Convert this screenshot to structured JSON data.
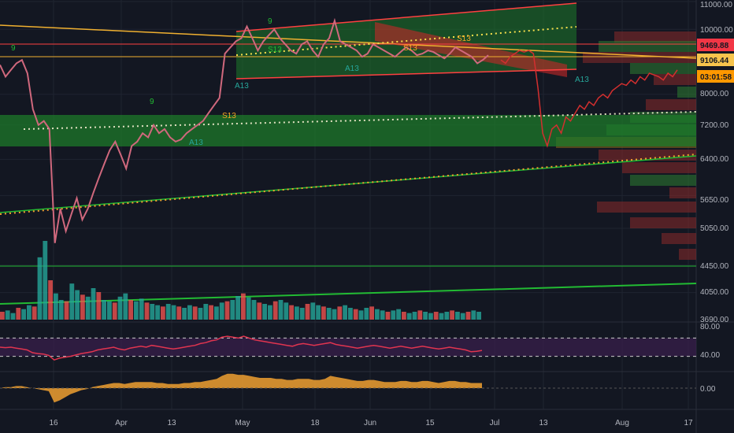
{
  "colors": {
    "background": "#131722",
    "grid": "#1f2430",
    "price_line": "#d0687d",
    "volume_up": "#26a69a",
    "volume_down": "#ef5350",
    "rsi_line": "#e0344f",
    "rsi_band": "#3a1f4d",
    "macd_fill": "#f0a030",
    "trendline_green": "#22bb33",
    "trendline_orange": "#f0b030",
    "channel_red": "#ff4040",
    "vp_green": "#2e7d32",
    "vp_red": "#8b2a2a",
    "badge_red": "#f23645",
    "badge_yellow": "#f7c44c",
    "badge_orange": "#ff9800"
  },
  "chart_data": [
    {
      "type": "line",
      "pane": "price",
      "title": "",
      "y_ticks": [
        "11000.00",
        "10000.00",
        "9469.88",
        "9106.44",
        "03:01:58",
        "8000.00",
        "7200.00",
        "6400.00",
        "5650.00",
        "5050.00",
        "4450.00",
        "4050.00",
        "3690.00"
      ],
      "ylim": [
        3690,
        11000
      ],
      "y_scale": "log",
      "badges": [
        {
          "value": "9469.88",
          "color": "#f23645"
        },
        {
          "value": "9106.44",
          "color": "#f7c44c"
        },
        {
          "value": "03:01:58",
          "color": "#ff9800"
        }
      ],
      "annotations": [
        "9",
        "S13",
        "A13",
        "S13",
        "A13",
        "9",
        "A13",
        "S13",
        "9",
        "S13",
        "A13"
      ],
      "series": [
        {
          "values": [
            8850,
            8500,
            8700,
            8900,
            9000,
            8600,
            7600,
            7200,
            7300,
            7100,
            4800,
            5400,
            5000,
            5300,
            5600,
            5200,
            5400,
            5700,
            6000,
            6300,
            6600,
            6800,
            6500,
            6200,
            6700,
            6800,
            7000,
            6900,
            7200,
            7000,
            7100,
            6900,
            6800,
            6850,
            7000,
            7100,
            7200,
            7300,
            7500,
            7700,
            7900,
            9200,
            9400,
            9600,
            9700,
            10100,
            9700,
            9300,
            9600,
            9800,
            10000,
            9700,
            9500,
            9300,
            9200,
            9500,
            9600,
            9300,
            9100,
            9500,
            9700,
            10300,
            9600,
            9500,
            9400,
            9300,
            9100,
            9200,
            9500,
            9400,
            9300,
            9200,
            9100,
            9250,
            9400,
            9300,
            9150,
            9200,
            9300,
            9250,
            9150,
            9050,
            9200,
            9400,
            9300,
            9200,
            9100,
            8900,
            9000,
            9150
          ]
        },
        {
          "values": [
            9000,
            8900,
            9100,
            9200,
            9300,
            9250,
            9300,
            9200,
            8150,
            7000,
            6700,
            7100,
            7200,
            7000,
            7400,
            7300,
            7500,
            7700,
            7600,
            7800,
            7700,
            7900,
            8000,
            7900,
            8100,
            8200,
            8300,
            8250,
            8400,
            8300,
            8500,
            8400,
            8600,
            8550,
            8500,
            8400,
            8600,
            8500,
            8700
          ]
        }
      ]
    },
    {
      "type": "bar",
      "pane": "volume",
      "values": [
        12,
        14,
        10,
        18,
        16,
        22,
        20,
        95,
        120,
        60,
        40,
        30,
        28,
        55,
        45,
        38,
        35,
        48,
        42,
        30,
        28,
        26,
        35,
        40,
        30,
        28,
        32,
        26,
        24,
        22,
        20,
        24,
        22,
        20,
        18,
        22,
        20,
        18,
        24,
        22,
        20,
        26,
        28,
        30,
        36,
        40,
        34,
        30,
        26,
        24,
        22,
        28,
        30,
        26,
        22,
        20,
        18,
        24,
        26,
        22,
        20,
        18,
        16,
        20,
        22,
        18,
        16,
        14,
        18,
        20,
        16,
        14,
        12,
        14,
        16,
        12,
        10,
        12,
        14,
        12,
        10,
        12,
        10,
        12,
        14,
        12,
        10,
        12,
        14,
        12
      ]
    },
    {
      "type": "line",
      "pane": "rsi",
      "y_ticks": [
        "80.00",
        "40.00"
      ],
      "ylim": [
        0,
        100
      ],
      "values": [
        50,
        49,
        50,
        48,
        46,
        44,
        38,
        36,
        35,
        32,
        22,
        26,
        28,
        30,
        33,
        36,
        38,
        40,
        44,
        46,
        48,
        50,
        46,
        44,
        48,
        50,
        52,
        50,
        54,
        52,
        50,
        48,
        46,
        48,
        50,
        52,
        54,
        58,
        60,
        64,
        66,
        72,
        74,
        72,
        70,
        74,
        70,
        66,
        64,
        62,
        60,
        58,
        56,
        54,
        52,
        56,
        58,
        56,
        54,
        56,
        58,
        60,
        56,
        54,
        52,
        50,
        48,
        50,
        52,
        54,
        52,
        50,
        48,
        50,
        52,
        50,
        48,
        50,
        52,
        50,
        48,
        46,
        48,
        50,
        48,
        46,
        44,
        40,
        41,
        43
      ]
    },
    {
      "type": "area",
      "pane": "macd",
      "y_ticks": [
        "0.00"
      ],
      "values": [
        0,
        1,
        1,
        2,
        2,
        1,
        0,
        -1,
        -2,
        -3,
        -14,
        -12,
        -9,
        -6,
        -4,
        -2,
        -1,
        1,
        2,
        3,
        4,
        5,
        5,
        4,
        5,
        6,
        6,
        6,
        6,
        5,
        5,
        4,
        4,
        4,
        5,
        5,
        6,
        6,
        7,
        8,
        9,
        12,
        14,
        14,
        13,
        13,
        12,
        11,
        10,
        10,
        10,
        9,
        9,
        8,
        8,
        9,
        9,
        9,
        8,
        8,
        9,
        12,
        11,
        10,
        9,
        8,
        7,
        7,
        8,
        8,
        7,
        6,
        6,
        6,
        7,
        7,
        6,
        6,
        7,
        7,
        6,
        5,
        6,
        7,
        7,
        6,
        6,
        5,
        5,
        5
      ]
    },
    {
      "type": "axis",
      "x_labels": [
        "16",
        "Apr",
        "13",
        "May",
        "18",
        "Jun",
        "15",
        "Jul",
        "13",
        "Aug",
        "17"
      ]
    }
  ]
}
